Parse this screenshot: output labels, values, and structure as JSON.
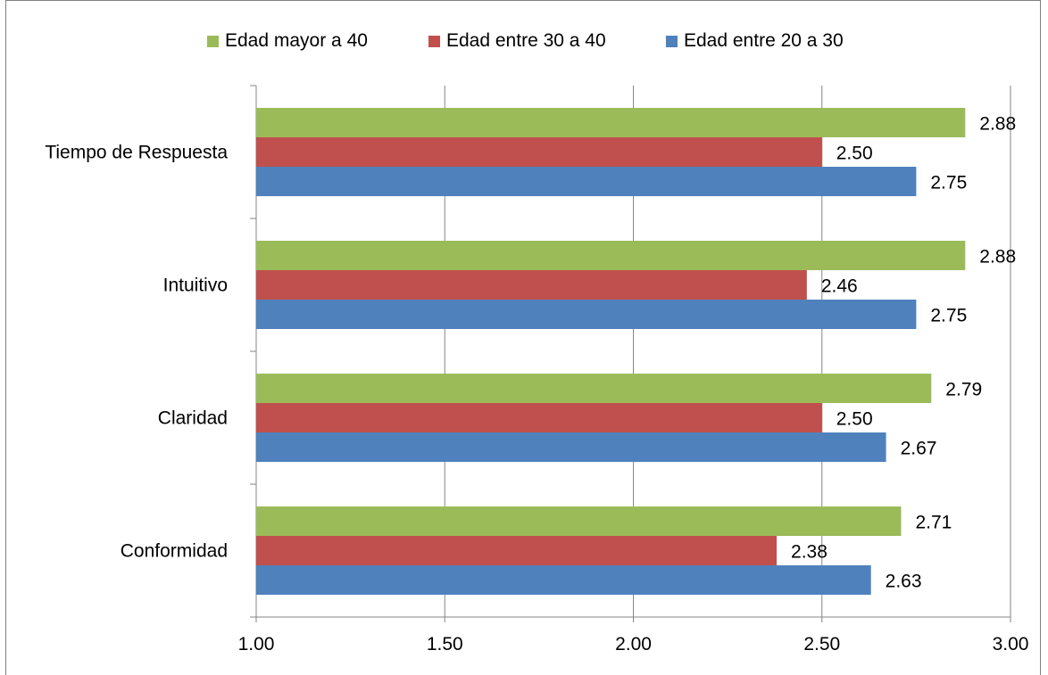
{
  "chart_data": {
    "type": "bar",
    "orientation": "horizontal",
    "categories": [
      "Tiempo de Respuesta",
      "Intuitivo",
      "Claridad",
      "Conformidad"
    ],
    "series": [
      {
        "name": "Edad mayor a 40",
        "color": "#9BBB59",
        "values": [
          2.88,
          2.88,
          2.79,
          2.71
        ]
      },
      {
        "name": "Edad entre 30 a 40",
        "color": "#C0504D",
        "values": [
          2.5,
          2.46,
          2.5,
          2.38
        ]
      },
      {
        "name": "Edad entre 20 a 30",
        "color": "#4F81BD",
        "values": [
          2.75,
          2.75,
          2.67,
          2.63
        ]
      }
    ],
    "xlim": [
      1.0,
      3.0
    ],
    "xticks": [
      "1.00",
      "1.50",
      "2.00",
      "2.50",
      "3.00"
    ],
    "grid": "vertical-major",
    "legend": "top",
    "title": "",
    "xlabel": "",
    "ylabel": ""
  }
}
